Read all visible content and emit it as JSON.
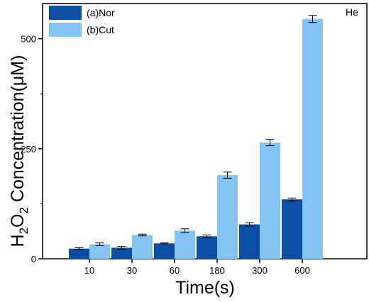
{
  "chart_data": {
    "type": "bar",
    "annotation": "He",
    "xlabel": "Time(s)",
    "ylabel_parts": [
      "H",
      "2",
      "O",
      "2",
      " Concentration(μM)"
    ],
    "categories": [
      "10",
      "30",
      "60",
      "180",
      "300",
      "600"
    ],
    "ylim": [
      0,
      580
    ],
    "yticks": [
      0,
      250,
      500
    ],
    "grid": false,
    "legend_position": "top-left",
    "series": [
      {
        "name": "(a)Nor",
        "color": "#0a4ea6",
        "values": [
          23,
          25,
          35,
          51,
          78,
          135
        ],
        "errors": [
          2,
          3,
          1,
          3,
          4,
          3
        ]
      },
      {
        "name": "(b)Cut",
        "color": "#83c4f3",
        "values": [
          33,
          54,
          64,
          190,
          264,
          545
        ],
        "errors": [
          3,
          2,
          4,
          7,
          7,
          8
        ]
      }
    ]
  }
}
